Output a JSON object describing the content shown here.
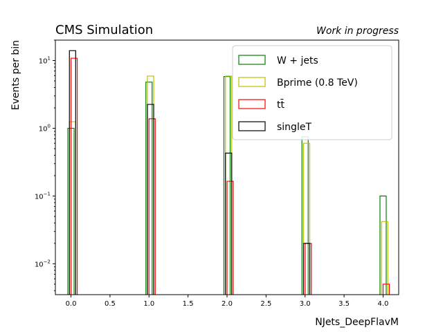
{
  "chart_data": {
    "type": "bar",
    "title": "CMS Simulation",
    "subtitle": "Work in progress",
    "xlabel": "NJets_DeepFlavM",
    "ylabel": "Events per bin",
    "yscale": "log",
    "xlim": [
      -0.2,
      4.2
    ],
    "ylim": [
      0.0035,
      20
    ],
    "xticks": [
      "0.0",
      "0.5",
      "1.0",
      "1.5",
      "2.0",
      "2.5",
      "3.0",
      "3.5",
      "4.0"
    ],
    "yticks_labels": [
      "10^-2",
      "10^-1",
      "10^0",
      "10^1"
    ],
    "grid": false,
    "legend_position": "top-right",
    "histtype": "step",
    "bin_edges": [
      0,
      0.1,
      0.2,
      0.3,
      0.4,
      0.5,
      0.6,
      0.7,
      0.8,
      0.9,
      1.0,
      1.1,
      1.2,
      1.3,
      1.4,
      1.5,
      1.6,
      1.7,
      1.8,
      1.9,
      2.0,
      2.1,
      2.2,
      2.3,
      2.4,
      2.5,
      2.6,
      2.7,
      2.8,
      2.9,
      3.0,
      3.1,
      3.2,
      3.3,
      3.4,
      3.5,
      3.6,
      3.7,
      3.8,
      3.9,
      4.0
    ],
    "series": [
      {
        "name": "W + jets",
        "color": "#008000",
        "points": [
          [
            -0.04,
            0.04,
            1.0
          ],
          [
            0.96,
            1.04,
            4.8
          ],
          [
            1.96,
            2.04,
            5.8
          ],
          [
            2.96,
            3.04,
            0.75
          ],
          [
            3.96,
            4.04,
            0.1
          ]
        ]
      },
      {
        "name": "Bprime (0.8 TeV)",
        "color": "#bfbf00",
        "points": [
          [
            -0.02,
            0.06,
            1.25
          ],
          [
            0.98,
            1.06,
            5.9
          ],
          [
            1.98,
            2.06,
            5.9
          ],
          [
            2.98,
            3.06,
            0.6
          ],
          [
            3.98,
            4.06,
            0.042
          ]
        ]
      },
      {
        "name": "tt̄",
        "color": "#ff0000",
        "points": [
          [
            0.0,
            0.08,
            10.8
          ],
          [
            1.0,
            1.08,
            1.38
          ],
          [
            2.0,
            2.08,
            0.165
          ],
          [
            3.0,
            3.08,
            0.02
          ],
          [
            4.0,
            4.08,
            0.005
          ]
        ]
      },
      {
        "name": "singleT",
        "color": "#000000",
        "points": [
          [
            -0.02,
            0.06,
            14.0
          ],
          [
            0.98,
            1.06,
            2.25
          ],
          [
            1.98,
            2.06,
            0.43
          ],
          [
            2.98,
            3.06,
            0.02
          ]
        ]
      }
    ]
  }
}
